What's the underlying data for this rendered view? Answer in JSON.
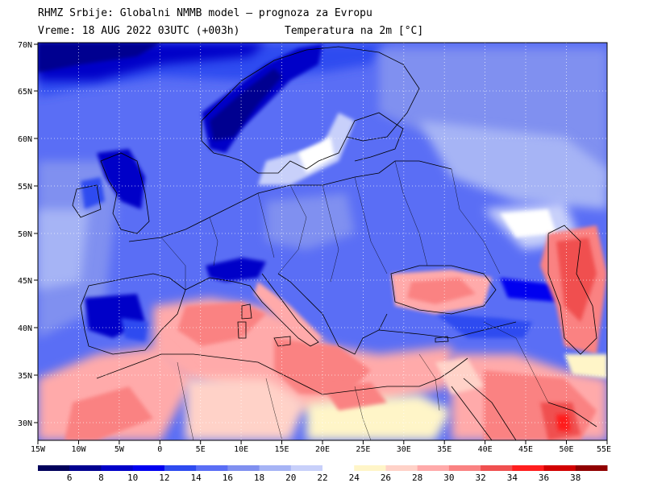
{
  "header": {
    "line1": "RHMZ Srbije: Globalni NMMB model — prognoza za Evropu",
    "valid_label": "Vreme: 18 AUG 2022 03UTC (+003h)",
    "field_label": "Temperatura na 2m [°C]"
  },
  "map": {
    "lon_labels": [
      "15W",
      "10W",
      "5W",
      "0",
      "5E",
      "10E",
      "15E",
      "20E",
      "25E",
      "30E",
      "35E",
      "40E",
      "45E",
      "50E",
      "55E"
    ],
    "lat_labels": [
      "70N",
      "65N",
      "60N",
      "55N",
      "50N",
      "45N",
      "40N",
      "35N",
      "30N"
    ],
    "grid_lines": "dotted"
  },
  "colorbar": {
    "ticks": [
      "6",
      "8",
      "10",
      "12",
      "14",
      "16",
      "18",
      "20",
      "22",
      "24",
      "26",
      "28",
      "30",
      "32",
      "34",
      "36",
      "38"
    ],
    "colors": [
      "#00005a",
      "#000090",
      "#0000c8",
      "#0000f0",
      "#2e4bf0",
      "#5a6ef5",
      "#8090f0",
      "#a6b4f5",
      "#c8d0fa",
      "#ffffff",
      "#fff5c8",
      "#ffd2c8",
      "#ffaaaa",
      "#fa8282",
      "#f05050",
      "#ff1e1e",
      "#d20000",
      "#900000"
    ]
  }
}
